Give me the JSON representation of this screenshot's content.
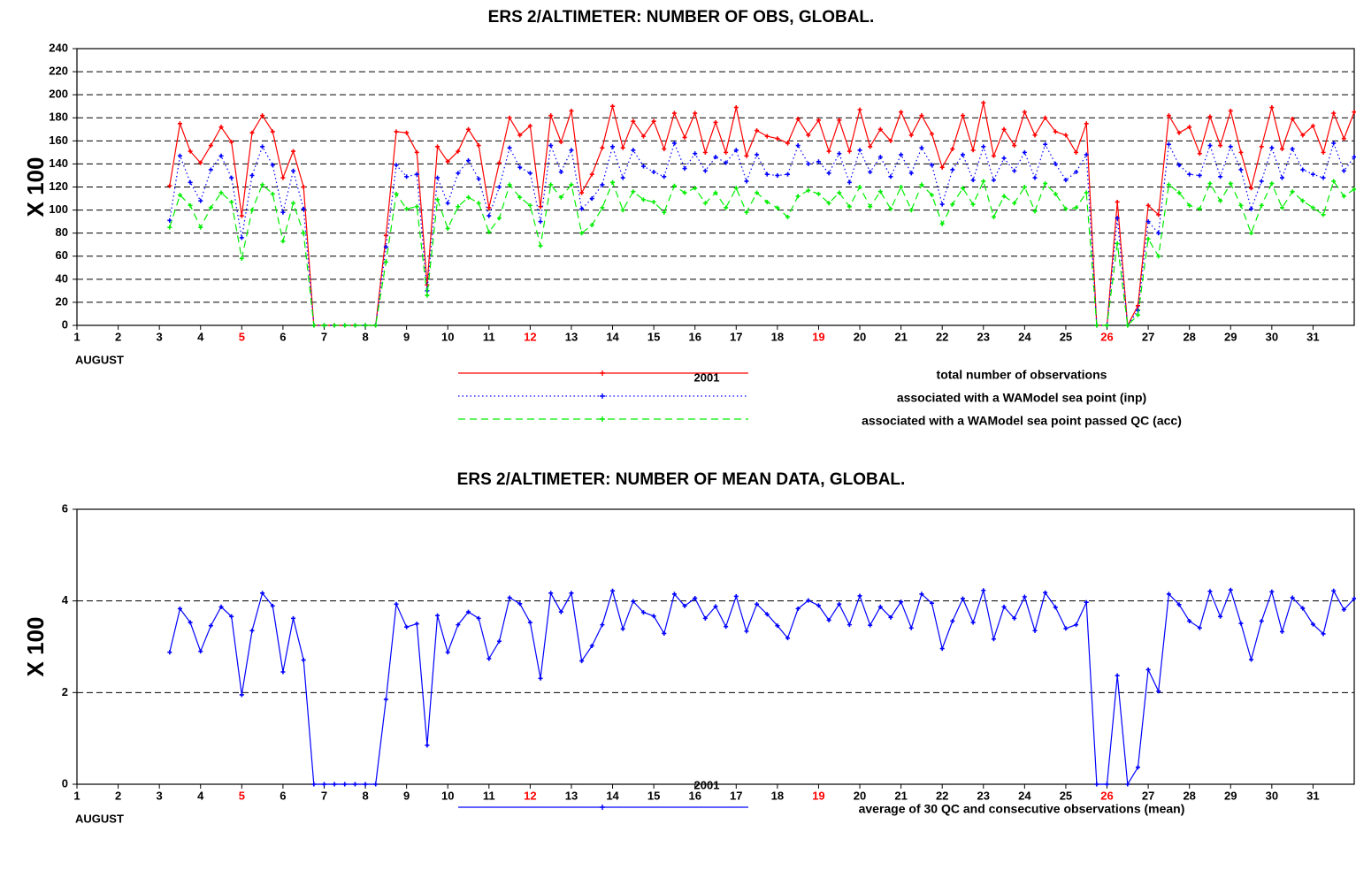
{
  "chart_data": [
    {
      "type": "line",
      "title": "ERS 2/ALTIMETER: NUMBER OF OBS, GLOBAL.",
      "y_label": "X 100",
      "x_label": "AUGUST",
      "legend_title": "2001",
      "x": [
        3.25,
        3.5,
        3.75,
        4,
        4.25,
        4.5,
        4.75,
        5,
        5.25,
        5.5,
        5.75,
        6,
        6.25,
        6.5,
        6.75,
        7,
        7.25,
        7.5,
        7.75,
        8,
        8.25,
        8.5,
        8.75,
        9,
        9.25,
        9.5,
        9.75,
        10,
        10.25,
        10.5,
        10.75,
        11,
        11.25,
        11.5,
        11.75,
        12,
        12.25,
        12.5,
        12.75,
        13,
        13.25,
        13.5,
        13.75,
        14,
        14.25,
        14.5,
        14.75,
        15,
        15.25,
        15.5,
        15.75,
        16,
        16.25,
        16.5,
        16.75,
        17,
        17.25,
        17.5,
        17.75,
        18,
        18.25,
        18.5,
        18.75,
        19,
        19.25,
        19.5,
        19.75,
        20,
        20.25,
        20.5,
        20.75,
        21,
        21.25,
        21.5,
        21.75,
        22,
        22.25,
        22.5,
        22.75,
        23,
        23.25,
        23.5,
        23.75,
        24,
        24.25,
        24.5,
        24.75,
        25,
        25.25,
        25.5,
        25.75,
        26,
        26.25,
        26.5,
        26.75,
        27,
        27.25,
        27.5,
        27.75,
        28,
        28.25,
        28.5,
        28.75,
        29,
        29.25,
        29.5,
        29.75,
        30,
        30.25,
        30.5,
        30.75,
        31,
        31.25,
        31.5,
        31.75,
        32
      ],
      "xlim": [
        1,
        32
      ],
      "xticks": [
        1,
        2,
        3,
        4,
        5,
        6,
        7,
        8,
        9,
        10,
        11,
        12,
        13,
        14,
        15,
        16,
        17,
        18,
        19,
        20,
        21,
        22,
        23,
        24,
        25,
        26,
        27,
        28,
        29,
        30,
        31
      ],
      "highlight_xticks": [
        5,
        12,
        19,
        26
      ],
      "highlight_color": "#ff0000",
      "ylim": [
        0,
        240
      ],
      "yticks": [
        0,
        20,
        40,
        60,
        80,
        100,
        120,
        140,
        160,
        180,
        200,
        220,
        240
      ],
      "grid": true,
      "series": [
        {
          "name": "total number of observations",
          "color": "#ff0000",
          "line_style": "solid",
          "values": [
            121,
            175,
            151,
            141,
            156,
            172,
            159,
            95,
            167,
            182,
            168,
            128,
            151,
            120,
            0,
            0,
            0,
            0,
            0,
            0,
            0,
            78,
            168,
            167,
            150,
            35,
            155,
            142,
            151,
            170,
            156,
            102,
            141,
            180,
            165,
            173,
            103,
            182,
            159,
            186,
            115,
            131,
            154,
            190,
            154,
            177,
            164,
            177,
            153,
            184,
            163,
            184,
            150,
            176,
            150,
            189,
            147,
            169,
            164,
            162,
            158,
            179,
            165,
            178,
            151,
            178,
            151,
            187,
            155,
            170,
            160,
            185,
            165,
            182,
            166,
            137,
            153,
            182,
            152,
            193,
            147,
            170,
            156,
            185,
            165,
            180,
            168,
            165,
            150,
            175,
            0,
            0,
            107,
            0,
            17,
            104,
            96,
            182,
            167,
            172,
            149,
            181,
            156,
            186,
            150,
            119,
            155,
            189,
            153,
            179,
            165,
            173,
            150,
            184,
            162,
            185
          ]
        },
        {
          "name": "associated with a WAModel sea point (inp)",
          "color": "#0000ff",
          "line_style": "dotted",
          "values": [
            91,
            147,
            124,
            108,
            135,
            147,
            128,
            76,
            130,
            155,
            139,
            98,
            134,
            101,
            0,
            0,
            0,
            0,
            0,
            0,
            0,
            68,
            139,
            129,
            131,
            30,
            128,
            106,
            132,
            143,
            127,
            95,
            120,
            154,
            137,
            132,
            90,
            156,
            133,
            152,
            101,
            110,
            122,
            155,
            128,
            152,
            138,
            133,
            129,
            158,
            136,
            149,
            134,
            146,
            141,
            152,
            125,
            148,
            131,
            130,
            131,
            156,
            140,
            142,
            132,
            149,
            124,
            152,
            133,
            146,
            129,
            148,
            132,
            154,
            139,
            105,
            135,
            148,
            126,
            155,
            126,
            145,
            134,
            150,
            128,
            157,
            140,
            126,
            133,
            148,
            0,
            0,
            93,
            0,
            13,
            90,
            80,
            157,
            139,
            131,
            130,
            156,
            129,
            155,
            135,
            101,
            125,
            154,
            128,
            153,
            135,
            131,
            128,
            158,
            134,
            146
          ]
        },
        {
          "name": "associated with a WAModel sea point passed QC (acc)",
          "color": "#00ee00",
          "line_style": "dashed",
          "values": [
            85,
            113,
            104,
            85,
            102,
            115,
            107,
            58,
            100,
            122,
            114,
            73,
            106,
            80,
            0,
            0,
            0,
            0,
            0,
            0,
            0,
            55,
            114,
            101,
            103,
            26,
            109,
            84,
            103,
            111,
            106,
            81,
            93,
            122,
            111,
            104,
            69,
            122,
            111,
            122,
            80,
            87,
            102,
            124,
            100,
            116,
            109,
            107,
            98,
            121,
            115,
            119,
            106,
            115,
            102,
            119,
            98,
            115,
            107,
            102,
            94,
            112,
            117,
            114,
            106,
            115,
            103,
            120,
            103,
            116,
            101,
            120,
            100,
            122,
            113,
            88,
            105,
            119,
            105,
            125,
            94,
            112,
            106,
            120,
            99,
            123,
            114,
            101,
            102,
            115,
            0,
            0,
            71,
            0,
            9,
            75,
            60,
            122,
            115,
            104,
            101,
            123,
            108,
            123,
            104,
            80,
            104,
            123,
            102,
            116,
            108,
            102,
            96,
            125,
            112,
            118
          ]
        }
      ]
    },
    {
      "type": "line",
      "title": "ERS 2/ALTIMETER: NUMBER OF MEAN DATA, GLOBAL.",
      "y_label": "X 100",
      "x_label": "AUGUST",
      "legend_title": "2001",
      "x": [
        3.25,
        3.5,
        3.75,
        4,
        4.25,
        4.5,
        4.75,
        5,
        5.25,
        5.5,
        5.75,
        6,
        6.25,
        6.5,
        6.75,
        7,
        7.25,
        7.5,
        7.75,
        8,
        8.25,
        8.5,
        8.75,
        9,
        9.25,
        9.5,
        9.75,
        10,
        10.25,
        10.5,
        10.75,
        11,
        11.25,
        11.5,
        11.75,
        12,
        12.25,
        12.5,
        12.75,
        13,
        13.25,
        13.5,
        13.75,
        14,
        14.25,
        14.5,
        14.75,
        15,
        15.25,
        15.5,
        15.75,
        16,
        16.25,
        16.5,
        16.75,
        17,
        17.25,
        17.5,
        17.75,
        18,
        18.25,
        18.5,
        18.75,
        19,
        19.25,
        19.5,
        19.75,
        20,
        20.25,
        20.5,
        20.75,
        21,
        21.25,
        21.5,
        21.75,
        22,
        22.25,
        22.5,
        22.75,
        23,
        23.25,
        23.5,
        23.75,
        24,
        24.25,
        24.5,
        24.75,
        25,
        25.25,
        25.5,
        25.75,
        26,
        26.25,
        26.5,
        26.75,
        27,
        27.25,
        27.5,
        27.75,
        28,
        28.25,
        28.5,
        28.75,
        29,
        29.25,
        29.5,
        29.75,
        30,
        30.25,
        30.5,
        30.75,
        31,
        31.25,
        31.5,
        31.75,
        32
      ],
      "xlim": [
        1,
        32
      ],
      "xticks": [
        1,
        2,
        3,
        4,
        5,
        6,
        7,
        8,
        9,
        10,
        11,
        12,
        13,
        14,
        15,
        16,
        17,
        18,
        19,
        20,
        21,
        22,
        23,
        24,
        25,
        26,
        27,
        28,
        29,
        30,
        31
      ],
      "highlight_xticks": [
        5,
        12,
        19,
        26
      ],
      "highlight_color": "#ff0000",
      "ylim": [
        0,
        6
      ],
      "yticks": [
        0,
        2,
        4,
        6
      ],
      "grid": true,
      "series": [
        {
          "name": "average of 30 QC and consecutive observations (mean)",
          "color": "#0000ff",
          "line_style": "solid",
          "values": [
            2.88,
            3.83,
            3.53,
            2.9,
            3.46,
            3.87,
            3.66,
            1.95,
            3.35,
            4.17,
            3.89,
            2.45,
            3.62,
            2.71,
            0,
            0,
            0,
            0,
            0,
            0,
            0,
            1.85,
            3.93,
            3.43,
            3.5,
            0.85,
            3.68,
            2.88,
            3.48,
            3.76,
            3.62,
            2.74,
            3.12,
            4.07,
            3.94,
            3.53,
            2.31,
            4.17,
            3.76,
            4.17,
            2.69,
            3.02,
            3.48,
            4.22,
            3.39,
            3.99,
            3.75,
            3.67,
            3.29,
            4.15,
            3.89,
            4.06,
            3.62,
            3.88,
            3.44,
            4.1,
            3.34,
            3.93,
            3.71,
            3.46,
            3.19,
            3.83,
            4.01,
            3.9,
            3.58,
            3.93,
            3.48,
            4.11,
            3.47,
            3.87,
            3.64,
            3.98,
            3.41,
            4.15,
            3.95,
            2.96,
            3.56,
            4.05,
            3.53,
            4.23,
            3.17,
            3.87,
            3.62,
            4.09,
            3.35,
            4.18,
            3.86,
            3.4,
            3.48,
            3.97,
            0,
            0,
            2.37,
            0,
            0.37,
            2.5,
            2.03,
            4.15,
            3.92,
            3.56,
            3.41,
            4.21,
            3.66,
            4.24,
            3.51,
            2.72,
            3.56,
            4.2,
            3.33,
            4.07,
            3.84,
            3.49,
            3.28,
            4.22,
            3.81,
            4.05
          ]
        }
      ]
    }
  ]
}
